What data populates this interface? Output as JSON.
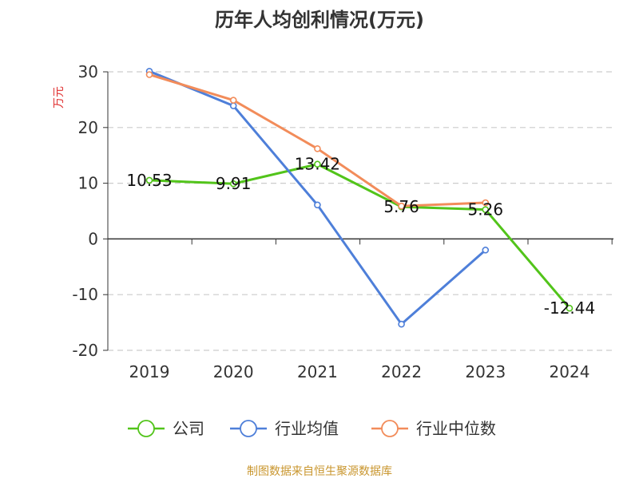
{
  "chart_data": {
    "type": "line",
    "title": "历年人均创利情况(万元)",
    "ylabel": "万元",
    "ylabel_color": "#e03030",
    "categories": [
      "2019",
      "2020",
      "2021",
      "2022",
      "2023",
      "2024"
    ],
    "ylim": [
      -20,
      30
    ],
    "yticks": [
      -20,
      -10,
      0,
      10,
      20,
      30
    ],
    "grid": true,
    "legend_position": "bottom",
    "series": [
      {
        "name": "公司",
        "color": "#52c41a",
        "values": [
          10.53,
          9.91,
          13.42,
          5.76,
          5.26,
          -12.44
        ],
        "labels": [
          "10.53",
          "9.91",
          "13.42",
          "5.76",
          "5.26",
          "-12.44"
        ]
      },
      {
        "name": "行业均值",
        "color": "#4e7fd9",
        "values": [
          30.1,
          23.9,
          6.1,
          -15.3,
          -2.0,
          null
        ],
        "labels": []
      },
      {
        "name": "行业中位数",
        "color": "#f28c5a",
        "values": [
          29.5,
          24.9,
          16.2,
          5.9,
          6.5,
          null
        ],
        "labels": []
      }
    ]
  },
  "source_text": "制图数据来自恒生聚源数据库",
  "source_color": "#c9962e"
}
